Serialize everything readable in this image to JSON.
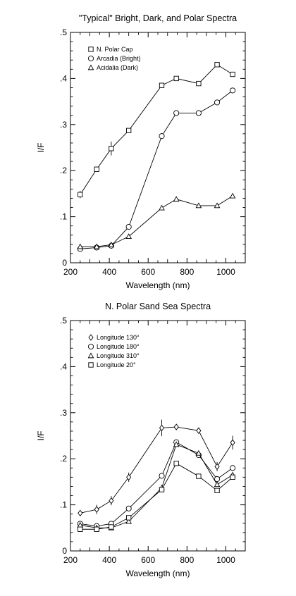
{
  "chart_data": [
    {
      "type": "line",
      "title": "\"Typical\" Bright, Dark, and Polar Spectra",
      "xlabel": "Wavelength (nm)",
      "ylabel": "I/F",
      "xlim": [
        200,
        1100
      ],
      "ylim": [
        0,
        0.5
      ],
      "xticks": [
        200,
        400,
        600,
        800,
        1000
      ],
      "xtick_labels": [
        "200",
        "400",
        "600",
        "800",
        "1000"
      ],
      "yticks": [
        0,
        0.1,
        0.2,
        0.3,
        0.4,
        0.5
      ],
      "ytick_labels": [
        "0",
        ".1",
        ".2",
        ".3",
        ".4",
        ".5"
      ],
      "legend_position": "top-left",
      "grid": false,
      "series": [
        {
          "name": "N. Polar Cap",
          "marker": "square",
          "x": [
            250,
            335,
            410,
            500,
            670,
            745,
            860,
            955,
            1035
          ],
          "y": [
            0.148,
            0.203,
            0.248,
            0.287,
            0.385,
            0.4,
            0.389,
            0.43,
            0.409
          ],
          "err": [
            0.008,
            0,
            0.015,
            0,
            0,
            0,
            0,
            0,
            0
          ]
        },
        {
          "name": "Arcadia (Bright)",
          "marker": "circle",
          "x": [
            250,
            335,
            410,
            500,
            670,
            745,
            860,
            955,
            1035
          ],
          "y": [
            0.03,
            0.033,
            0.037,
            0.078,
            0.275,
            0.325,
            0.325,
            0.348,
            0.374
          ],
          "err": [
            0,
            0,
            0,
            0,
            0,
            0,
            0,
            0,
            0
          ]
        },
        {
          "name": "Acidalia (Dark)",
          "marker": "triangle",
          "x": [
            250,
            335,
            410,
            500,
            670,
            745,
            860,
            955,
            1035
          ],
          "y": [
            0.035,
            0.035,
            0.039,
            0.057,
            0.119,
            0.138,
            0.124,
            0.124,
            0.145
          ],
          "err": [
            0,
            0,
            0,
            0,
            0,
            0,
            0,
            0,
            0
          ]
        }
      ]
    },
    {
      "type": "line",
      "title": "N. Polar Sand Sea Spectra",
      "xlabel": "Wavelength (nm)",
      "ylabel": "I/F",
      "xlim": [
        200,
        1100
      ],
      "ylim": [
        0,
        0.5
      ],
      "xticks": [
        200,
        400,
        600,
        800,
        1000
      ],
      "xtick_labels": [
        "200",
        "400",
        "600",
        "800",
        "1000"
      ],
      "yticks": [
        0,
        0.1,
        0.2,
        0.3,
        0.4,
        0.5
      ],
      "ytick_labels": [
        "0",
        ".1",
        ".2",
        ".3",
        ".4",
        ".5"
      ],
      "legend_position": "top-left",
      "grid": false,
      "series": [
        {
          "name": "Longitude 130°",
          "marker": "diamond",
          "x": [
            250,
            335,
            410,
            500,
            670,
            745,
            860,
            955,
            1035
          ],
          "y": [
            0.082,
            0.09,
            0.109,
            0.16,
            0.267,
            0.269,
            0.261,
            0.183,
            0.235
          ],
          "err": [
            0,
            0.01,
            0.01,
            0.01,
            0.018,
            0,
            0,
            0.01,
            0.015
          ]
        },
        {
          "name": "Longitude 180°",
          "marker": "circle",
          "x": [
            250,
            335,
            410,
            500,
            670,
            745,
            860,
            955,
            1035
          ],
          "y": [
            0.059,
            0.054,
            0.059,
            0.092,
            0.163,
            0.236,
            0.208,
            0.156,
            0.18
          ],
          "err": [
            0,
            0,
            0,
            0,
            0,
            0,
            0,
            0,
            0
          ]
        },
        {
          "name": "Longitude 310°",
          "marker": "triangle",
          "x": [
            250,
            335,
            410,
            500,
            670,
            745,
            860,
            955,
            1035
          ],
          "y": [
            0.056,
            0.05,
            0.05,
            0.064,
            0.137,
            0.231,
            0.212,
            0.144,
            0.165
          ],
          "err": [
            0,
            0,
            0,
            0,
            0,
            0,
            0,
            0,
            0
          ]
        },
        {
          "name": "Longitude 20°",
          "marker": "square",
          "x": [
            250,
            335,
            410,
            500,
            670,
            745,
            860,
            955,
            1035
          ],
          "y": [
            0.047,
            0.047,
            0.052,
            0.072,
            0.133,
            0.19,
            0.162,
            0.131,
            0.16
          ],
          "err": [
            0,
            0,
            0,
            0,
            0,
            0,
            0,
            0,
            0
          ]
        }
      ]
    }
  ]
}
